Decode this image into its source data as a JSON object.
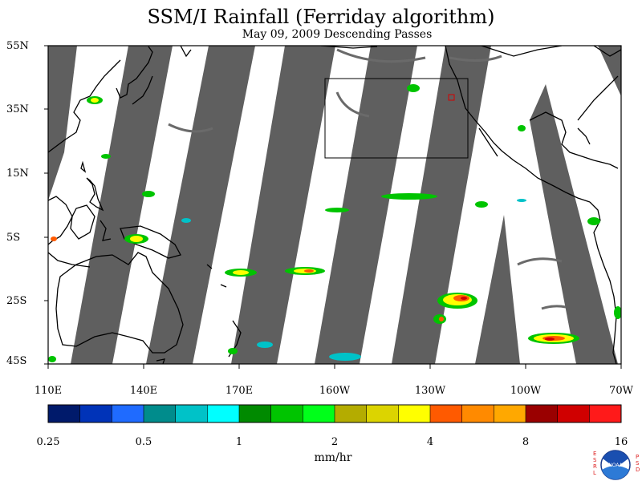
{
  "header": {
    "title": "SSM/I Rainfall (Ferriday algorithm)",
    "subtitle": "May 09, 2009  Descending Passes"
  },
  "axes": {
    "lat_labels": [
      "55N",
      "35N",
      "15N",
      "5S",
      "25S",
      "45S"
    ],
    "lon_labels": [
      "110E",
      "140E",
      "170E",
      "160W",
      "130W",
      "100W",
      "70W"
    ]
  },
  "colorbar": {
    "labels": [
      "0.25",
      "0.5",
      "1",
      "2",
      "4",
      "8",
      "16"
    ],
    "units": "mm/hr",
    "colors": [
      "#001a6b",
      "#0033b8",
      "#1f6bff",
      "#008c8c",
      "#00c2c8",
      "#00ffff",
      "#008a00",
      "#00c400",
      "#00ff1a",
      "#b4ac00",
      "#dcd400",
      "#ffff00",
      "#ff5a00",
      "#ff8a00",
      "#ffa800",
      "#9a0000",
      "#d00000",
      "#ff1a1a"
    ]
  },
  "colors": {
    "no_data_swath": "#5f5f5f",
    "map_background": "#ffffff",
    "outline": "#000000",
    "box_outline": "#000000",
    "marker": "#d40000"
  },
  "logo": {
    "left_text": "ESRL",
    "right_text": "PSD",
    "center_text": "NOAA"
  }
}
